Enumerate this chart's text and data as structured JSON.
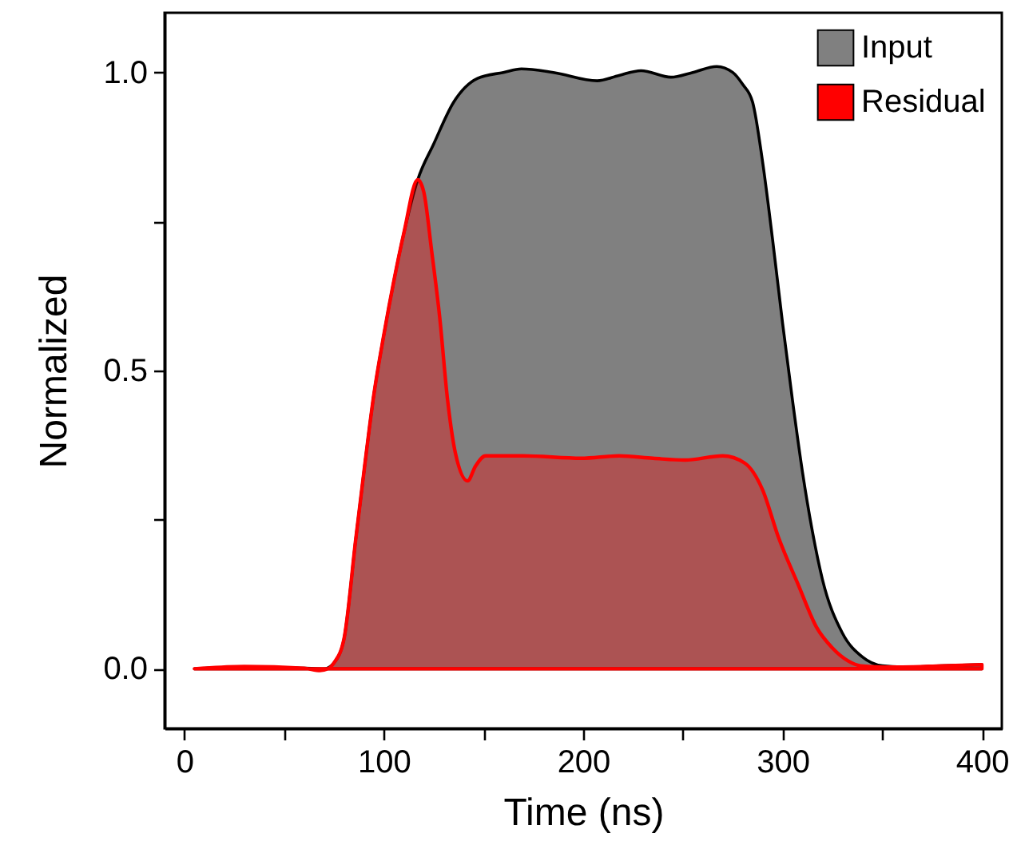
{
  "chart_data": {
    "type": "area",
    "xlabel": "Time (ns)",
    "ylabel": "Normalized",
    "xlim": [
      -10,
      410
    ],
    "ylim": [
      -0.1,
      1.1
    ],
    "xticks": [
      0,
      {
        "value": 50,
        "label": null
      },
      100,
      {
        "value": 150,
        "label": null
      },
      200,
      {
        "value": 250,
        "label": null
      },
      300,
      {
        "value": 350,
        "label": null
      },
      400
    ],
    "yticks": [
      {
        "value": 0,
        "label": "0.0"
      },
      {
        "value": 0.25,
        "label": null
      },
      0.5,
      {
        "value": 0.75,
        "label": null
      },
      {
        "value": 1,
        "label": "1.0"
      }
    ],
    "legend": "top right",
    "grid": false,
    "series": [
      {
        "name": "Input",
        "color": "#808080",
        "x": [
          5,
          30,
          60,
          70,
          75,
          80,
          86,
          90,
          95,
          100,
          105,
          110,
          117,
          125,
          135,
          147,
          160,
          169,
          185,
          207,
          218,
          229,
          244,
          255,
          267,
          275,
          280,
          285,
          290,
          295,
          300,
          305,
          310,
          315,
          320,
          330,
          340,
          350,
          360,
          380,
          400
        ],
        "values": [
          0,
          0.003,
          0.001,
          0,
          0.01,
          0.05,
          0.22,
          0.33,
          0.46,
          0.56,
          0.65,
          0.73,
          0.82,
          0.88,
          0.95,
          0.99,
          1.0,
          1.006,
          1.0,
          0.986,
          0.995,
          1.003,
          0.992,
          1.0,
          1.01,
          1.0,
          0.98,
          0.95,
          0.85,
          0.72,
          0.58,
          0.45,
          0.33,
          0.23,
          0.15,
          0.06,
          0.02,
          0.005,
          0.003,
          0.005,
          0.007
        ]
      },
      {
        "name": "Residual",
        "color": "#ff0000",
        "x": [
          5,
          30,
          60,
          68,
          72,
          75,
          80,
          86,
          90,
          95,
          100,
          105,
          110,
          117,
          120,
          124,
          128,
          132,
          136,
          142,
          146,
          151,
          170,
          199,
          218,
          235,
          251,
          270,
          281,
          290,
          298,
          308,
          317,
          325,
          333,
          339,
          350,
          360,
          380,
          400
        ],
        "values": [
          0,
          0.004,
          0.001,
          -0.003,
          0,
          0.01,
          0.05,
          0.22,
          0.33,
          0.46,
          0.56,
          0.65,
          0.73,
          0.82,
          0.8,
          0.7,
          0.59,
          0.45,
          0.36,
          0.315,
          0.34,
          0.357,
          0.357,
          0.353,
          0.357,
          0.353,
          0.35,
          0.357,
          0.345,
          0.3,
          0.22,
          0.14,
          0.07,
          0.035,
          0.013,
          0.005,
          0.003,
          0.003,
          0.005,
          0.007
        ]
      }
    ]
  }
}
